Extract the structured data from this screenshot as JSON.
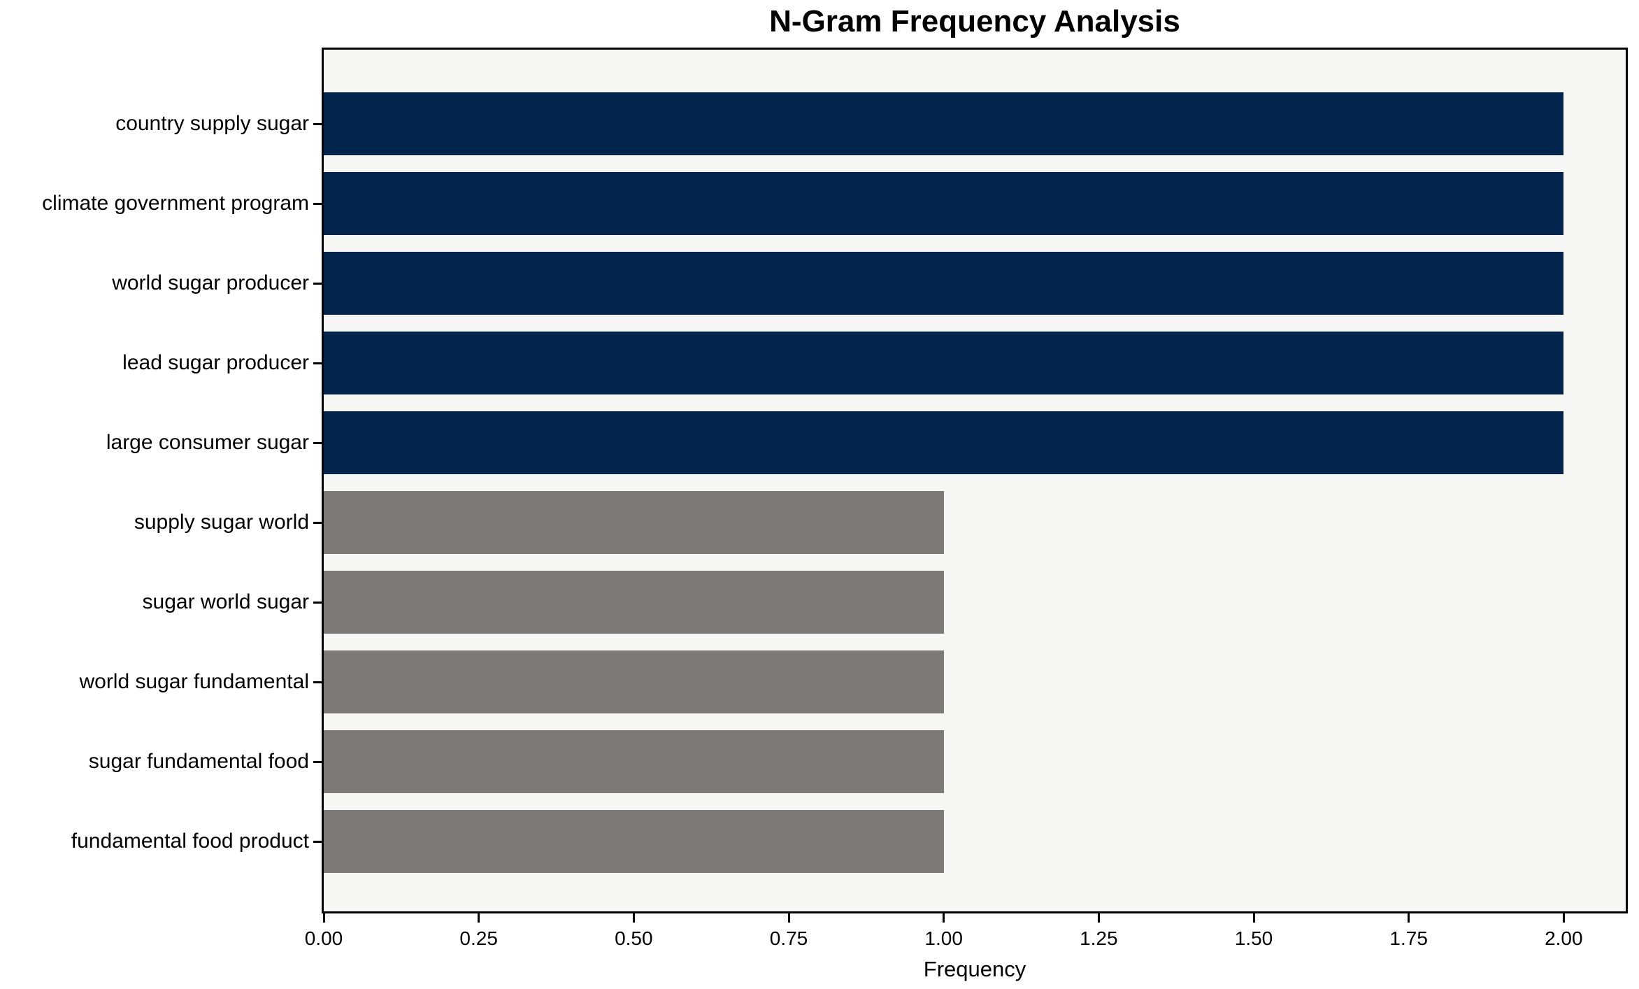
{
  "chart_data": {
    "type": "bar",
    "orientation": "horizontal",
    "title": "N-Gram Frequency Analysis",
    "xlabel": "Frequency",
    "ylabel": "",
    "categories": [
      "country supply sugar",
      "climate government program",
      "world sugar producer",
      "lead sugar producer",
      "large consumer sugar",
      "supply sugar world",
      "sugar world sugar",
      "world sugar fundamental",
      "sugar fundamental food",
      "fundamental food product"
    ],
    "values": [
      2,
      2,
      2,
      2,
      2,
      1,
      1,
      1,
      1,
      1
    ],
    "bar_colors": [
      "#02234B",
      "#02234B",
      "#02234B",
      "#02234B",
      "#02234B",
      "#7B7A77",
      "#7B7A77",
      "#7B7A77",
      "#7B7A77",
      "#7B7A77"
    ],
    "xlim": [
      0,
      2.1
    ],
    "xticks": {
      "values": [
        0,
        0.25,
        0.5,
        0.75,
        1.0,
        1.25,
        1.5,
        1.75,
        2.0
      ],
      "labels": [
        "0.00",
        "0.25",
        "0.50",
        "0.75",
        "1.00",
        "1.25",
        "1.50",
        "1.75",
        "2.00"
      ]
    },
    "grid": false,
    "legend": "none",
    "colors": {
      "highlight_bar": "#02234B",
      "default_bar": "#7B7A77",
      "plot_background": "#F7F7F6",
      "figure_background": "#FFFFFF",
      "text": "#000000"
    }
  }
}
